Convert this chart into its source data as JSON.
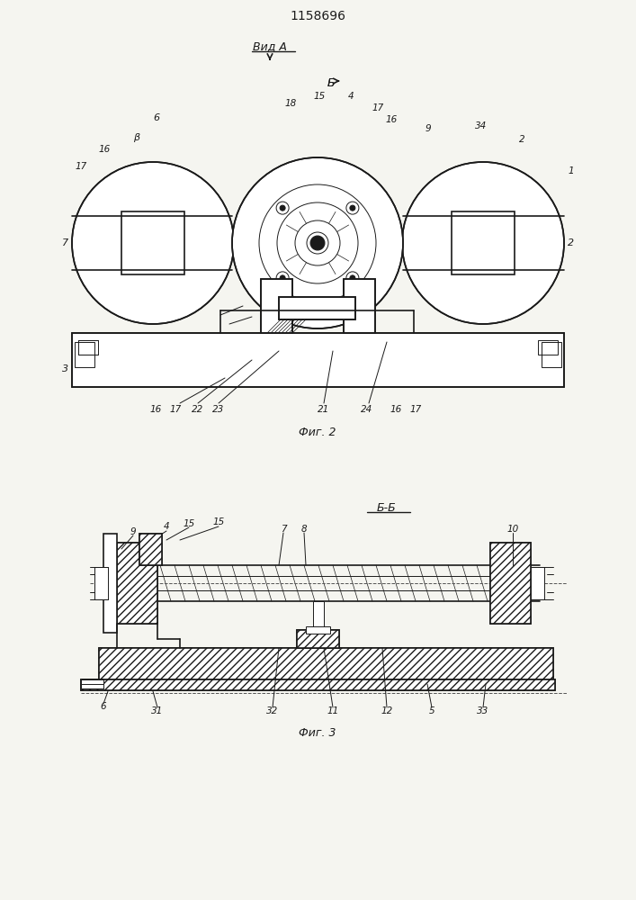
{
  "title": "1158696",
  "fig2_label": "Фиг. 2",
  "fig3_label": "Фиг. 3",
  "view_a_label": "Вид А",
  "section_bb_label": "Б-Б",
  "bg_color": "#f5f5f0",
  "line_color": "#1a1a1a",
  "hatch_color": "#1a1a1a",
  "arrow_color": "#1a1a1a"
}
